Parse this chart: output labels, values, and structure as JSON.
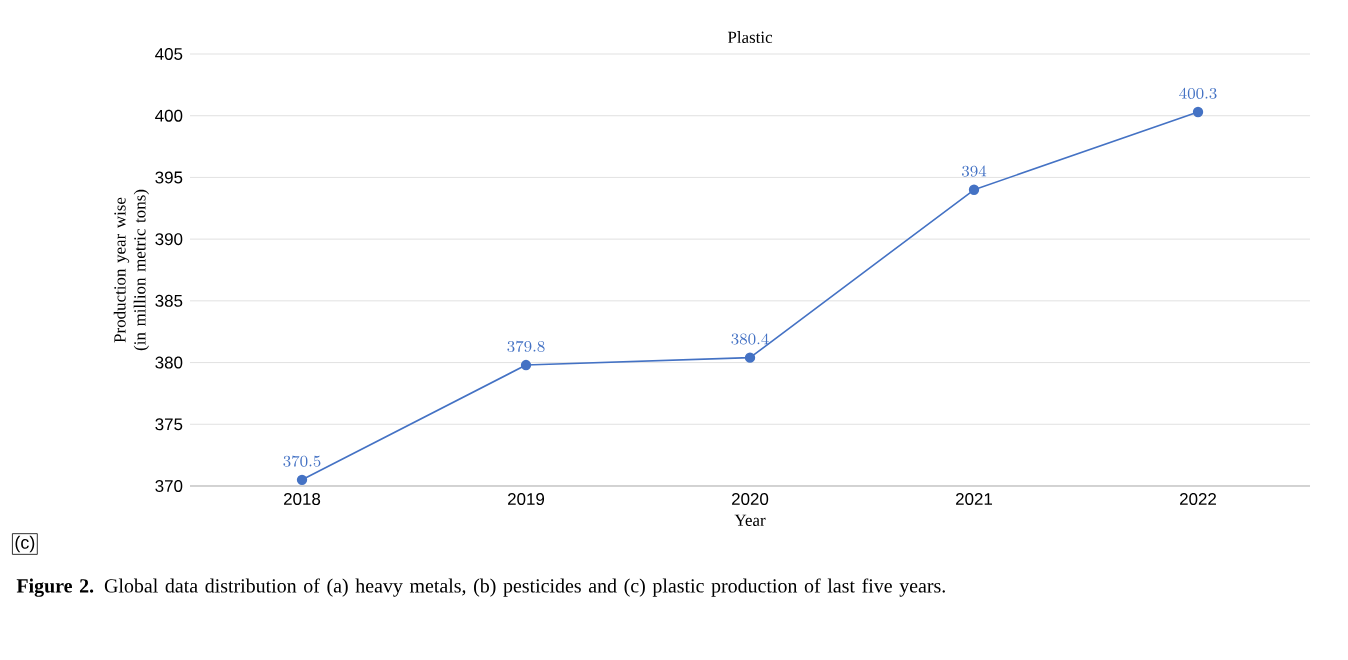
{
  "chart_data": {
    "type": "line",
    "title": "Plastic",
    "xlabel": "Year",
    "ylabel": "Production year wise (in million metric tons)",
    "categories": [
      "2018",
      "2019",
      "2020",
      "2021",
      "2022"
    ],
    "values": [
      370.5,
      379.8,
      380.4,
      394,
      400.3
    ],
    "color": "#4472c4",
    "ylim": [
      370,
      405
    ],
    "yticks": [
      370,
      375,
      380,
      385,
      390,
      395,
      400,
      405
    ],
    "grid": "y",
    "marker": "circle",
    "data_labels": true,
    "annotations": [
      "(c)",
      "**Figure 2.** Global data distribution of (a) heavy metals, (b) pesticides and (c) plastic production of last five years."
    ]
  }
}
